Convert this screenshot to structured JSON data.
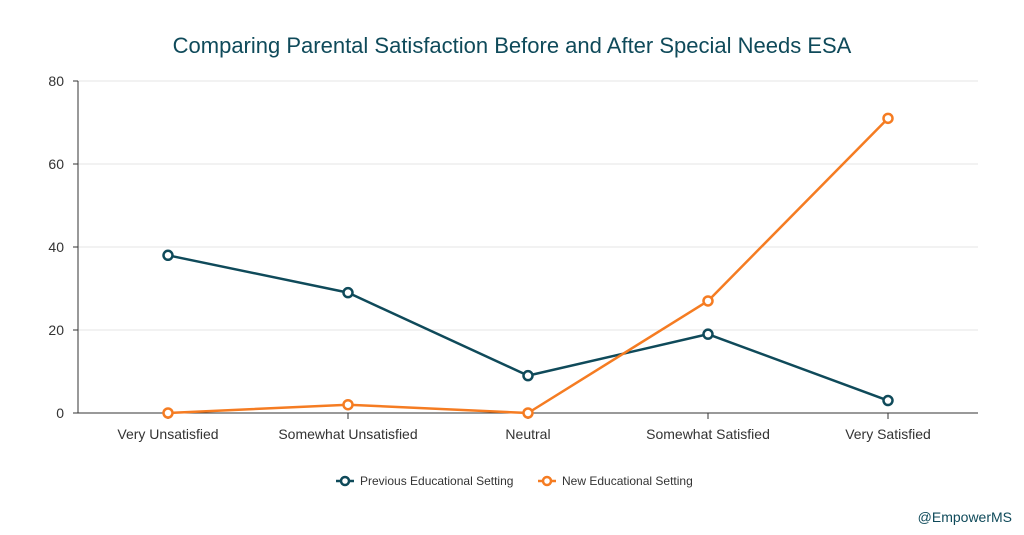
{
  "chart_data": {
    "type": "line",
    "title": "Comparing Parental Satisfaction Before and After Special Needs ESA",
    "xlabel": "",
    "ylabel": "",
    "categories": [
      "Very Unsatisfied",
      "Somewhat Unsatisfied",
      "Neutral",
      "Somewhat Satisfied",
      "Very Satisfied"
    ],
    "ylim": [
      0,
      80
    ],
    "yticks": [
      0,
      20,
      40,
      60,
      80
    ],
    "grid": true,
    "legend_position": "bottom",
    "series": [
      {
        "name": "Previous Educational Setting",
        "color": "#0f4a5a",
        "values": [
          38,
          29,
          9,
          19,
          3
        ]
      },
      {
        "name": "New Educational Setting",
        "color": "#f57c22",
        "values": [
          0,
          2,
          0,
          27,
          71
        ]
      }
    ]
  },
  "credit": "@EmpowerMS"
}
